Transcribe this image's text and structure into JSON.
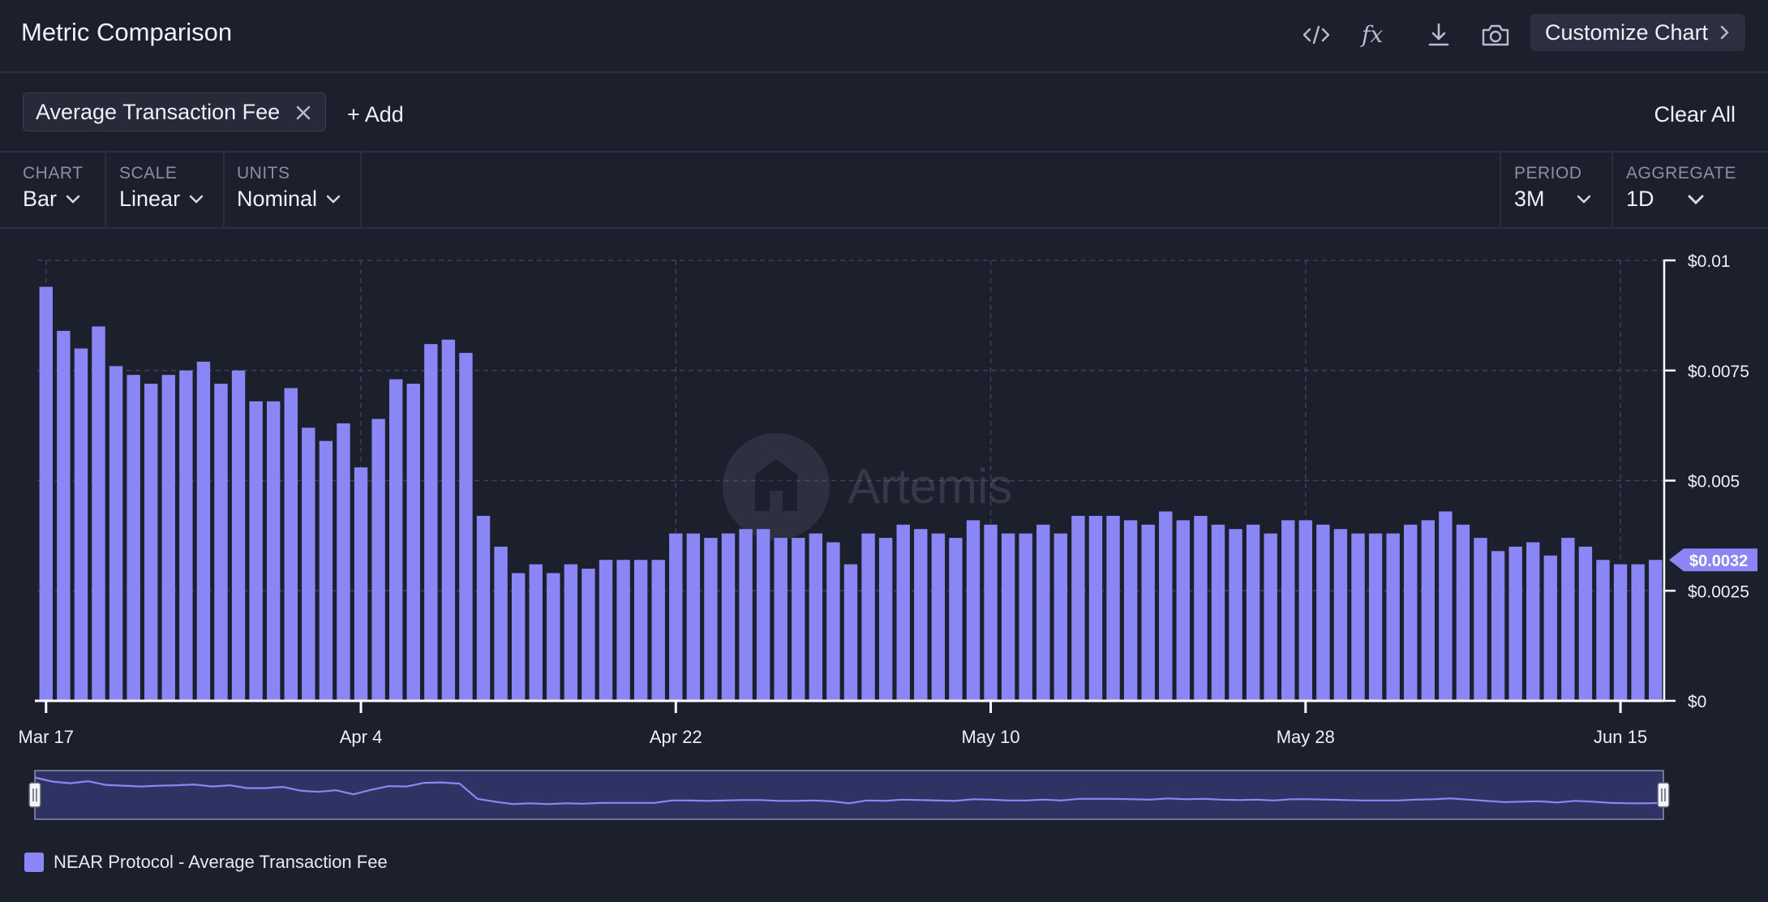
{
  "header": {
    "title": "Metric Comparison",
    "customize_label": "Customize Chart",
    "icons": [
      "code-icon",
      "formula-icon",
      "download-icon",
      "camera-icon"
    ]
  },
  "metrics": {
    "pill_label": "Average Transaction Fee",
    "add_label": "+ Add",
    "clear_label": "Clear All"
  },
  "controls": {
    "chart": {
      "label": "CHART",
      "value": "Bar"
    },
    "scale": {
      "label": "SCALE",
      "value": "Linear"
    },
    "units": {
      "label": "UNITS",
      "value": "Nominal"
    },
    "period": {
      "label": "PERIOD",
      "value": "3M"
    },
    "aggregate": {
      "label": "AGGREGATE",
      "value": "1D"
    }
  },
  "watermark": "Artemis",
  "colors": {
    "bar": "#8b86f6",
    "background": "#1c1f2c",
    "axis": "#ffffff"
  },
  "chart_data": {
    "type": "bar",
    "x_start": "Mar 17",
    "x_tick_labels": [
      "Mar 17",
      "Apr 4",
      "Apr 22",
      "May 10",
      "May 28",
      "Jun 15"
    ],
    "y_tick_labels": [
      "$0",
      "$0.0025",
      "$0.005",
      "$0.0075",
      "$0.01"
    ],
    "ylim": [
      0,
      0.01
    ],
    "last_value_label": "$0.0032",
    "grid": true,
    "legend": "bottom-left",
    "series": [
      {
        "name": "NEAR Protocol - Average Transaction Fee",
        "values": [
          0.0094,
          0.0084,
          0.008,
          0.0085,
          0.0076,
          0.0074,
          0.0072,
          0.0074,
          0.0075,
          0.0077,
          0.0072,
          0.0075,
          0.0068,
          0.0068,
          0.0071,
          0.0062,
          0.0059,
          0.0063,
          0.0053,
          0.0064,
          0.0073,
          0.0072,
          0.0081,
          0.0082,
          0.0079,
          0.0042,
          0.0035,
          0.0029,
          0.0031,
          0.0029,
          0.0031,
          0.003,
          0.0032,
          0.0032,
          0.0032,
          0.0032,
          0.0038,
          0.0038,
          0.0037,
          0.0038,
          0.0039,
          0.0039,
          0.0037,
          0.0037,
          0.0038,
          0.0036,
          0.0031,
          0.0038,
          0.0037,
          0.004,
          0.0039,
          0.0038,
          0.0037,
          0.0041,
          0.004,
          0.0038,
          0.0038,
          0.004,
          0.0038,
          0.0042,
          0.0042,
          0.0042,
          0.0041,
          0.004,
          0.0043,
          0.0041,
          0.0042,
          0.004,
          0.0039,
          0.004,
          0.0038,
          0.0041,
          0.0041,
          0.004,
          0.0039,
          0.0038,
          0.0038,
          0.0038,
          0.004,
          0.0041,
          0.0043,
          0.004,
          0.0037,
          0.0034,
          0.0035,
          0.0036,
          0.0033,
          0.0037,
          0.0035,
          0.0032,
          0.0031,
          0.0031,
          0.0032
        ]
      }
    ]
  }
}
